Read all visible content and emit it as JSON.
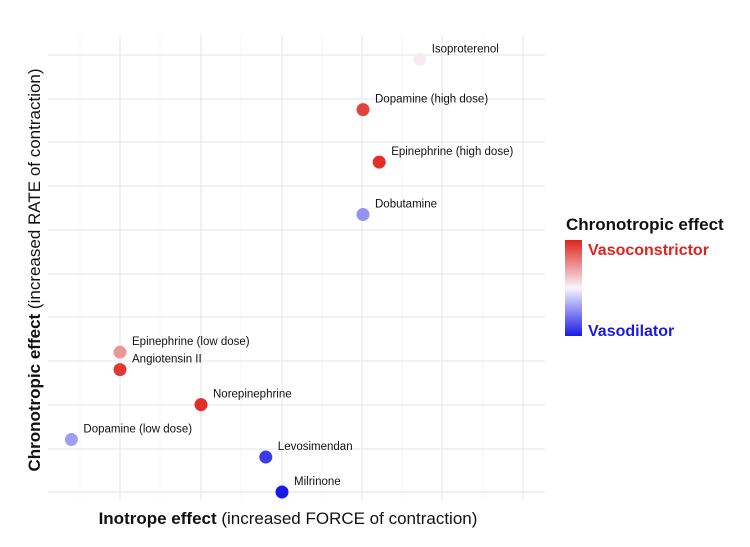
{
  "chart_data": {
    "type": "scatter",
    "xlabel_bold": "Inotrope effect",
    "xlabel_rest": " (increased FORCE of contraction)",
    "ylabel_bold": "Chronotropic effect",
    "ylabel_rest": " (increased RATE of contraction)",
    "xlim": [
      0,
      10
    ],
    "ylim": [
      0,
      10
    ],
    "grid": true,
    "legend": {
      "title": "Chronotropic effect",
      "high_label": "Vasoconstrictor",
      "low_label": "Vasodilator",
      "high_color": "#e0231c",
      "mid_color": "#f7f5ff",
      "low_color": "#1a1ae6",
      "placement": "right"
    },
    "points": [
      {
        "name": "Isoproterenol",
        "x": 6.7,
        "y": 9.9,
        "color_value": 0.05
      },
      {
        "name": "Dopamine (high dose)",
        "x": 6.0,
        "y": 8.75,
        "color_value": 0.85
      },
      {
        "name": "Epinephrine (high dose)",
        "x": 6.2,
        "y": 7.55,
        "color_value": 0.95
      },
      {
        "name": "Dobutamine",
        "x": 6.0,
        "y": 6.35,
        "color_value": -0.45
      },
      {
        "name": "Epinephrine (low dose)",
        "x": 3.0,
        "y": 3.2,
        "color_value": 0.45
      },
      {
        "name": "Angiotensin II",
        "x": 3.0,
        "y": 2.8,
        "color_value": 0.9
      },
      {
        "name": "Norepinephrine",
        "x": 4.0,
        "y": 2.0,
        "color_value": 0.95
      },
      {
        "name": "Dopamine (low dose)",
        "x": 2.4,
        "y": 1.2,
        "color_value": -0.4
      },
      {
        "name": "Levosimendan",
        "x": 4.8,
        "y": 0.8,
        "color_value": -0.85
      },
      {
        "name": "Milrinone",
        "x": 5.0,
        "y": 0.0,
        "color_value": -1.0
      }
    ]
  }
}
